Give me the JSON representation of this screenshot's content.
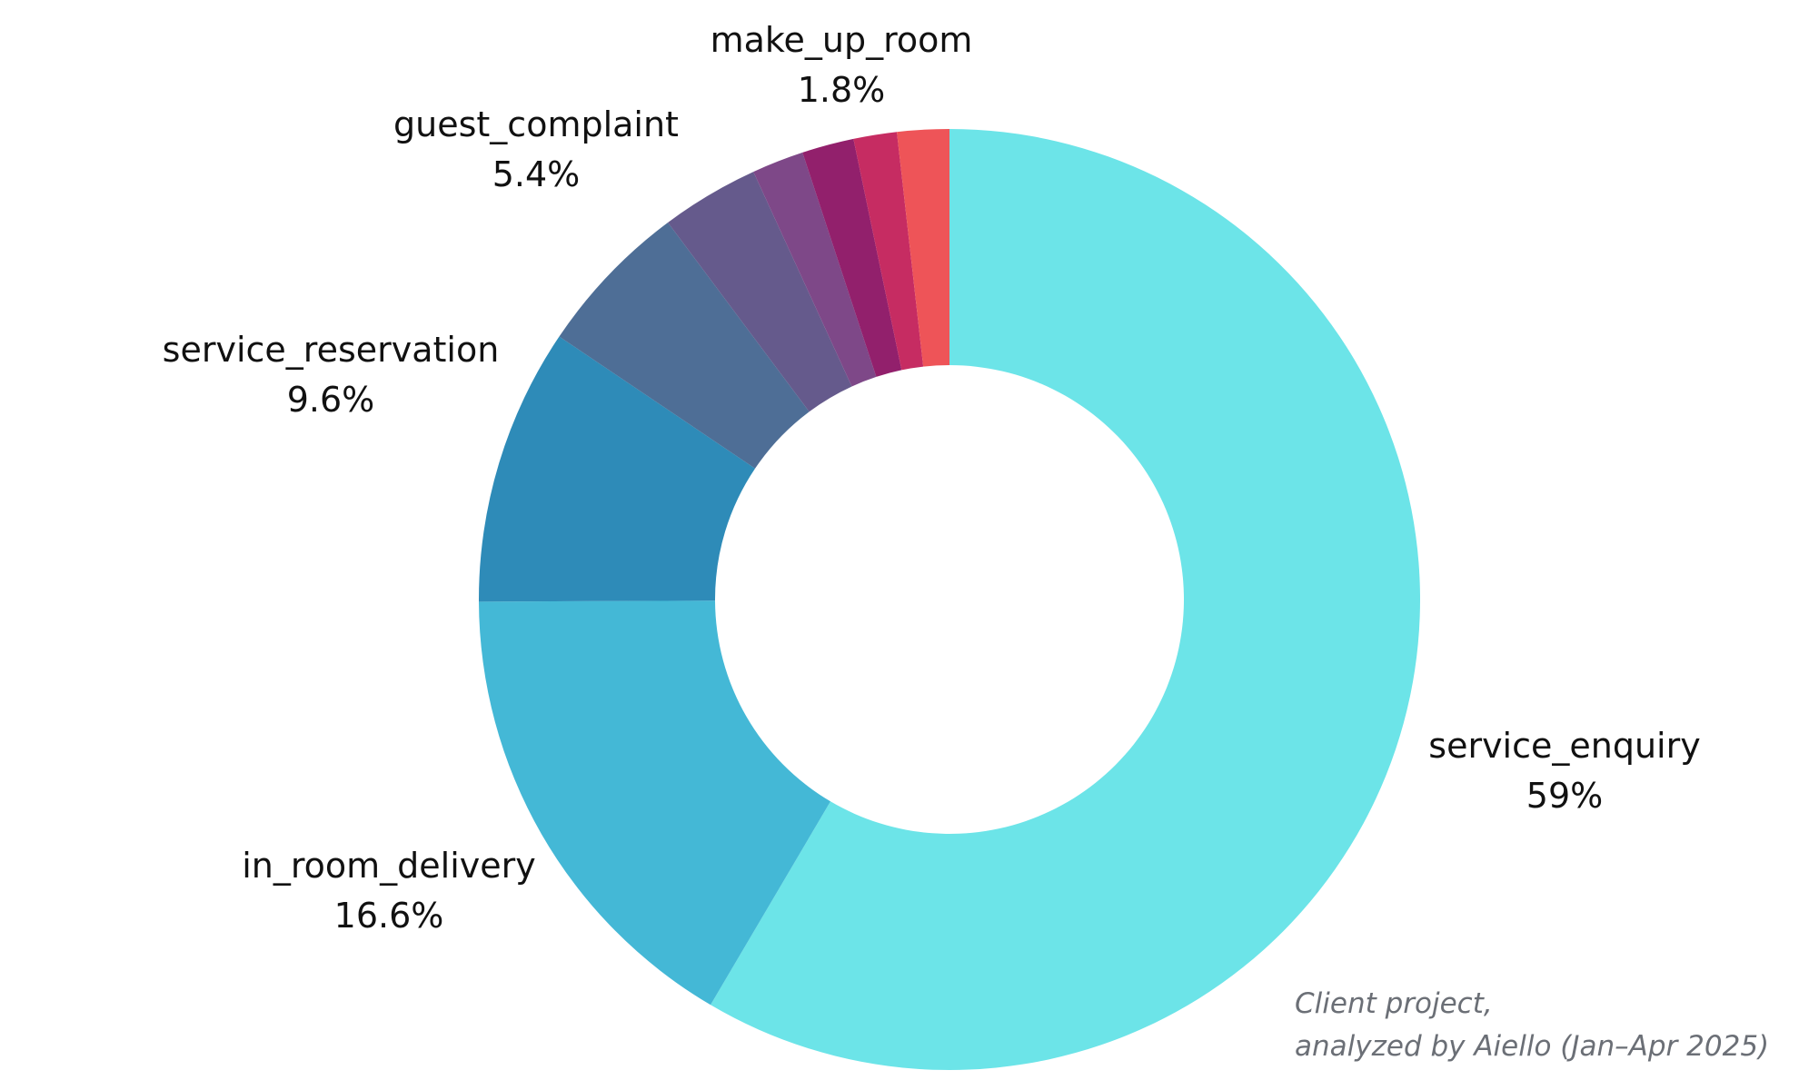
{
  "chart_data": {
    "type": "pie",
    "variant": "donut",
    "slices": [
      {
        "name": "service_enquiry",
        "value": 59,
        "value_label": "59%",
        "color": "#6ce4e8",
        "labeled": true
      },
      {
        "name": "in_room_delivery",
        "value": 16.6,
        "value_label": "16.6%",
        "color": "#44b8d6",
        "labeled": true
      },
      {
        "name": "service_reservation",
        "value": 9.6,
        "value_label": "9.6%",
        "color": "#2e8bb8",
        "labeled": true
      },
      {
        "name": "guest_complaint",
        "value": 5.4,
        "value_label": "5.4%",
        "color": "#4e6e96",
        "labeled": true
      },
      {
        "name": "",
        "value": 3.4,
        "value_label": "",
        "color": "#655a8c",
        "labeled": false
      },
      {
        "name": "",
        "value": 1.8,
        "value_label": "",
        "color": "#7e4888",
        "labeled": false
      },
      {
        "name": "",
        "value": 1.8,
        "value_label": "",
        "color": "#92206c",
        "labeled": false
      },
      {
        "name": "",
        "value": 1.5,
        "value_label": "",
        "color": "#c62c62",
        "labeled": false
      },
      {
        "name": "make_up_room",
        "value": 1.8,
        "value_label": "1.8%",
        "color": "#ee5458",
        "labeled": true
      }
    ],
    "direction": "clockwise-from-top",
    "legend": "none"
  },
  "credit": {
    "line1": "Client project,",
    "line2": "analyzed by Aiello (Jan–Apr 2025)"
  }
}
